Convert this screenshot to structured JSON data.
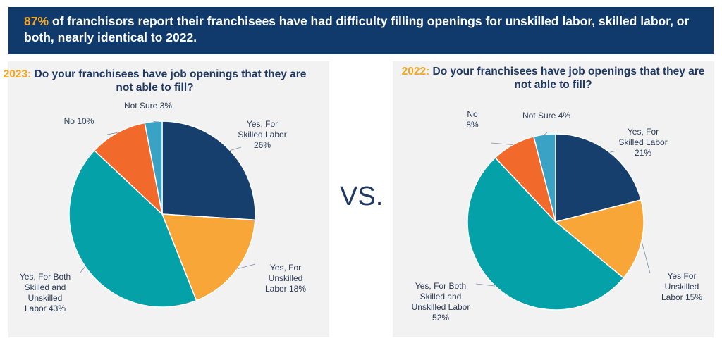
{
  "banner": {
    "highlight": "87%",
    "text": " of franchisors report their franchisees have had difficulty filling openings for unskilled labor, skilled labor, or both, nearly identical to 2022."
  },
  "vs_label": "VS.",
  "colors": {
    "navy": "#0f3a6b",
    "orange_accent": "#f5a623",
    "skilled": "#173f6e",
    "unskilled": "#f8a637",
    "both": "#04a2a8",
    "no": "#f1692b",
    "not_sure": "#3aa3c5"
  },
  "chart_data": [
    {
      "type": "pie",
      "title_year": "2023:",
      "title": "Do your franchisees have job openings that they are not able to fill?",
      "slices": [
        {
          "name": "Yes, For Skilled Labor",
          "value": 26,
          "color": "#173f6e",
          "label_lines": [
            "Yes, For",
            "Skilled Labor",
            "26%"
          ]
        },
        {
          "name": "Yes, For Unskilled Labor",
          "value": 18,
          "color": "#f8a637",
          "label_lines": [
            "Yes, For",
            "Unskilled",
            "Labor 18%"
          ]
        },
        {
          "name": "Yes, For Both Skilled and Unskilled Labor",
          "value": 43,
          "color": "#04a2a8",
          "label_lines": [
            "Yes, For Both",
            "Skilled and",
            "Unskilled",
            "Labor 43%"
          ]
        },
        {
          "name": "No",
          "value": 10,
          "color": "#f1692b",
          "label_lines": [
            "No 10%"
          ]
        },
        {
          "name": "Not Sure",
          "value": 3,
          "color": "#3aa3c5",
          "label_lines": [
            "Not Sure 3%"
          ]
        }
      ]
    },
    {
      "type": "pie",
      "title_year": "2022:",
      "title": "Do your franchisees have job openings that they are not able to fill?",
      "slices": [
        {
          "name": "Yes, For Skilled Labor",
          "value": 21,
          "color": "#173f6e",
          "label_lines": [
            "Yes, For",
            "Skilled Labor",
            "21%"
          ]
        },
        {
          "name": "Yes For Unskilled Labor",
          "value": 15,
          "color": "#f8a637",
          "label_lines": [
            "Yes For",
            "Unskilled",
            "Labor 15%"
          ]
        },
        {
          "name": "Yes, For Both Skilled and Unskilled Labor",
          "value": 52,
          "color": "#04a2a8",
          "label_lines": [
            "Yes, For Both",
            "Skilled and",
            "Unskilled Labor",
            "52%"
          ]
        },
        {
          "name": "No",
          "value": 8,
          "color": "#f1692b",
          "label_lines": [
            "No",
            "8%"
          ]
        },
        {
          "name": "Not Sure",
          "value": 4,
          "color": "#3aa3c5",
          "label_lines": [
            "Not Sure 4%"
          ]
        }
      ]
    }
  ]
}
